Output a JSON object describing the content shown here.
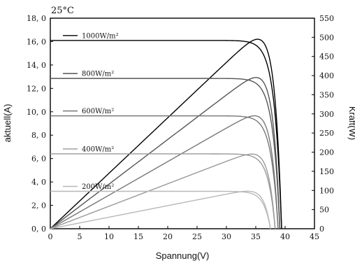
{
  "chart_data": {
    "type": "line",
    "annotation": "25°C",
    "xlabel": "Spannung(V)",
    "ylabel_left": "aktuell(A)",
    "ylabel_right": "Kraft(W)",
    "xlim": [
      0,
      45
    ],
    "ylim_left": [
      0,
      18
    ],
    "ylim_right": [
      0,
      550
    ],
    "x_ticks": [
      0,
      5,
      10,
      15,
      20,
      25,
      30,
      35,
      40,
      45
    ],
    "y_left_ticks": [
      "0, 0",
      "2, 0",
      "4, 0",
      "6, 0",
      "8, 0",
      "10, 0",
      "12, 0",
      "14, 0",
      "16, 0",
      "18, 0"
    ],
    "y_right_ticks": [
      0,
      50,
      100,
      150,
      200,
      250,
      300,
      350,
      400,
      450,
      500,
      550
    ],
    "grid": false,
    "legend_position": "top-left",
    "series": [
      {
        "name": "1000W/m²",
        "isc": 16.1,
        "voc": 39.4,
        "pmax": 495,
        "vmp": 32.8,
        "color": "#000000"
      },
      {
        "name": "800W/m²",
        "isc": 12.85,
        "voc": 39.1,
        "pmax": 395,
        "vmp": 32.5,
        "color": "#555555"
      },
      {
        "name": "600W/m²",
        "isc": 9.65,
        "voc": 38.8,
        "pmax": 295,
        "vmp": 32.4,
        "color": "#777777"
      },
      {
        "name": "400W/m²",
        "isc": 6.4,
        "voc": 38.3,
        "pmax": 195,
        "vmp": 32.2,
        "color": "#999999"
      },
      {
        "name": "200W/m²",
        "isc": 3.2,
        "voc": 37.5,
        "pmax": 98,
        "vmp": 31.8,
        "color": "#b8b8b8"
      }
    ]
  }
}
